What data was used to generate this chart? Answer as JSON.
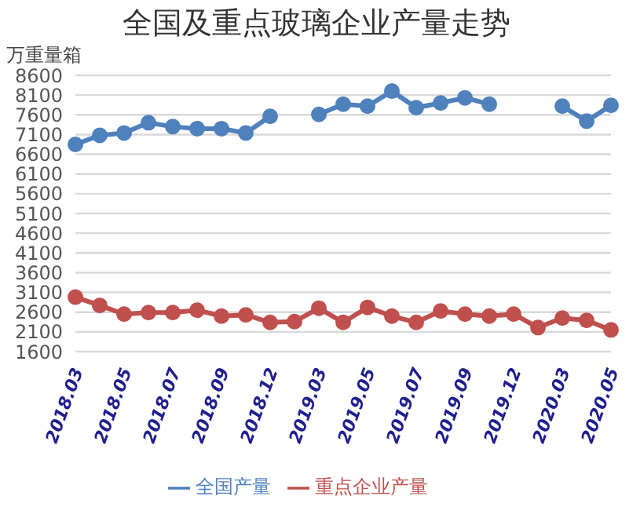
{
  "chart_data": {
    "type": "line",
    "title": "全国及重点玻璃企业产量走势",
    "ylabel": "万重量箱",
    "categories": [
      "2018.03",
      null,
      "2018.05",
      null,
      "2018.07",
      null,
      "2018.09",
      null,
      "2018.12",
      null,
      "2019.03",
      null,
      "2019.05",
      null,
      "2019.07",
      null,
      "2019.09",
      null,
      "2019.12",
      null,
      "2020.03",
      null,
      "2020.05"
    ],
    "series": [
      {
        "name": "全国产量",
        "color": "#4f81bd",
        "values": [
          6850,
          7080,
          7140,
          7400,
          7300,
          7250,
          7250,
          7140,
          7560,
          null,
          7610,
          7870,
          7820,
          8200,
          7780,
          7900,
          8030,
          7870,
          null,
          null,
          7820,
          7440,
          7840
        ]
      },
      {
        "name": "重点企业产量",
        "color": "#c0504d",
        "values": [
          2980,
          2770,
          2550,
          2590,
          2590,
          2650,
          2500,
          2530,
          2340,
          2360,
          2700,
          2340,
          2720,
          2500,
          2340,
          2630,
          2550,
          2500,
          2550,
          2210,
          2450,
          2390,
          2150
        ]
      }
    ],
    "ylim": [
      1600,
      8600
    ],
    "yticks": [
      1600,
      2100,
      2600,
      3100,
      3600,
      4100,
      4600,
      5100,
      5600,
      6100,
      6600,
      7100,
      7600,
      8100,
      8600
    ],
    "grid": "y",
    "legend": "bottom",
    "marker": "circle",
    "line_style": "solid"
  }
}
